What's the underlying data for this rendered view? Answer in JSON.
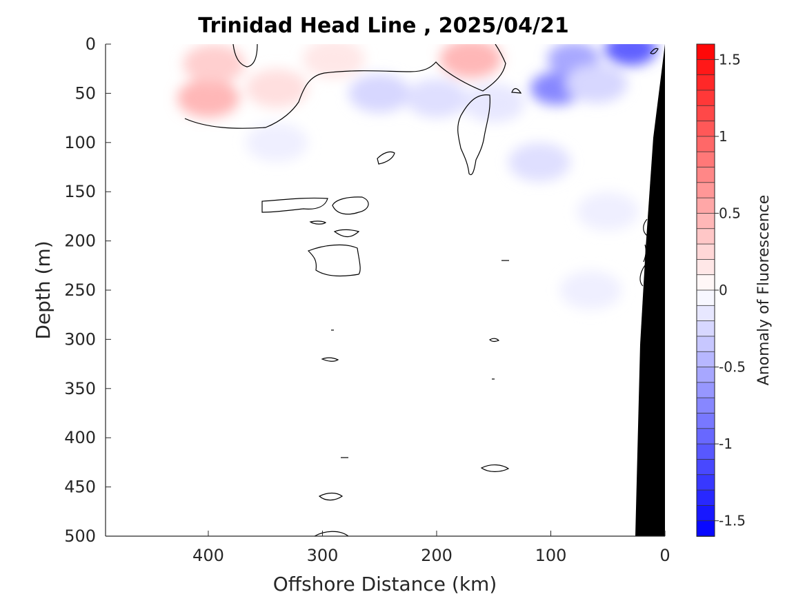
{
  "chart_data": {
    "type": "heatmap",
    "title": "Trinidad Head Line , 2025/04/21",
    "xlabel": "Offshore Distance (km)",
    "ylabel": "Depth (m)",
    "colorbar_label": "Anomaly of Fluorescence",
    "xlim": [
      490,
      0
    ],
    "ylim": [
      0,
      500
    ],
    "y_reversed": true,
    "x_ticks": [
      400,
      300,
      200,
      100,
      0
    ],
    "x_tick_labels": [
      "400",
      "300",
      "200",
      "100",
      "0"
    ],
    "y_ticks": [
      0,
      50,
      100,
      150,
      200,
      250,
      300,
      350,
      400,
      450,
      500
    ],
    "y_tick_labels": [
      "0",
      "50",
      "100",
      "150",
      "200",
      "250",
      "300",
      "350",
      "400",
      "450",
      "500"
    ],
    "colorbar_range": [
      -1.6,
      1.6
    ],
    "colorbar_levels": 32,
    "colorbar_ticks": [
      1.5,
      1,
      0.5,
      0,
      -0.5,
      -1,
      -1.5
    ],
    "colorbar_tick_labels": [
      "1.5",
      "1",
      "0.5",
      "0",
      "-0.5",
      "-1",
      "-1.5"
    ],
    "colormap": {
      "positive": "#ff0000",
      "zero": "#ffffff",
      "negative": "#0000ff"
    },
    "bottom_color": "#000000",
    "grid": false,
    "anomaly_patches": [
      {
        "x": 400,
        "y": 55,
        "value": 0.45
      },
      {
        "x": 395,
        "y": 20,
        "value": 0.3
      },
      {
        "x": 340,
        "y": 45,
        "value": 0.2
      },
      {
        "x": 290,
        "y": 15,
        "value": 0.15
      },
      {
        "x": 170,
        "y": 15,
        "value": 0.45
      },
      {
        "x": 250,
        "y": 50,
        "value": -0.25
      },
      {
        "x": 200,
        "y": 55,
        "value": -0.2
      },
      {
        "x": 150,
        "y": 60,
        "value": -0.15
      },
      {
        "x": 95,
        "y": 45,
        "value": -0.75
      },
      {
        "x": 80,
        "y": 15,
        "value": -0.55
      },
      {
        "x": 30,
        "y": 5,
        "value": -1.0
      },
      {
        "x": 60,
        "y": 40,
        "value": -0.25
      },
      {
        "x": 110,
        "y": 120,
        "value": -0.2
      },
      {
        "x": 340,
        "y": 100,
        "value": -0.1
      },
      {
        "x": 50,
        "y": 170,
        "value": -0.1
      },
      {
        "x": 65,
        "y": 250,
        "value": -0.1
      }
    ]
  }
}
